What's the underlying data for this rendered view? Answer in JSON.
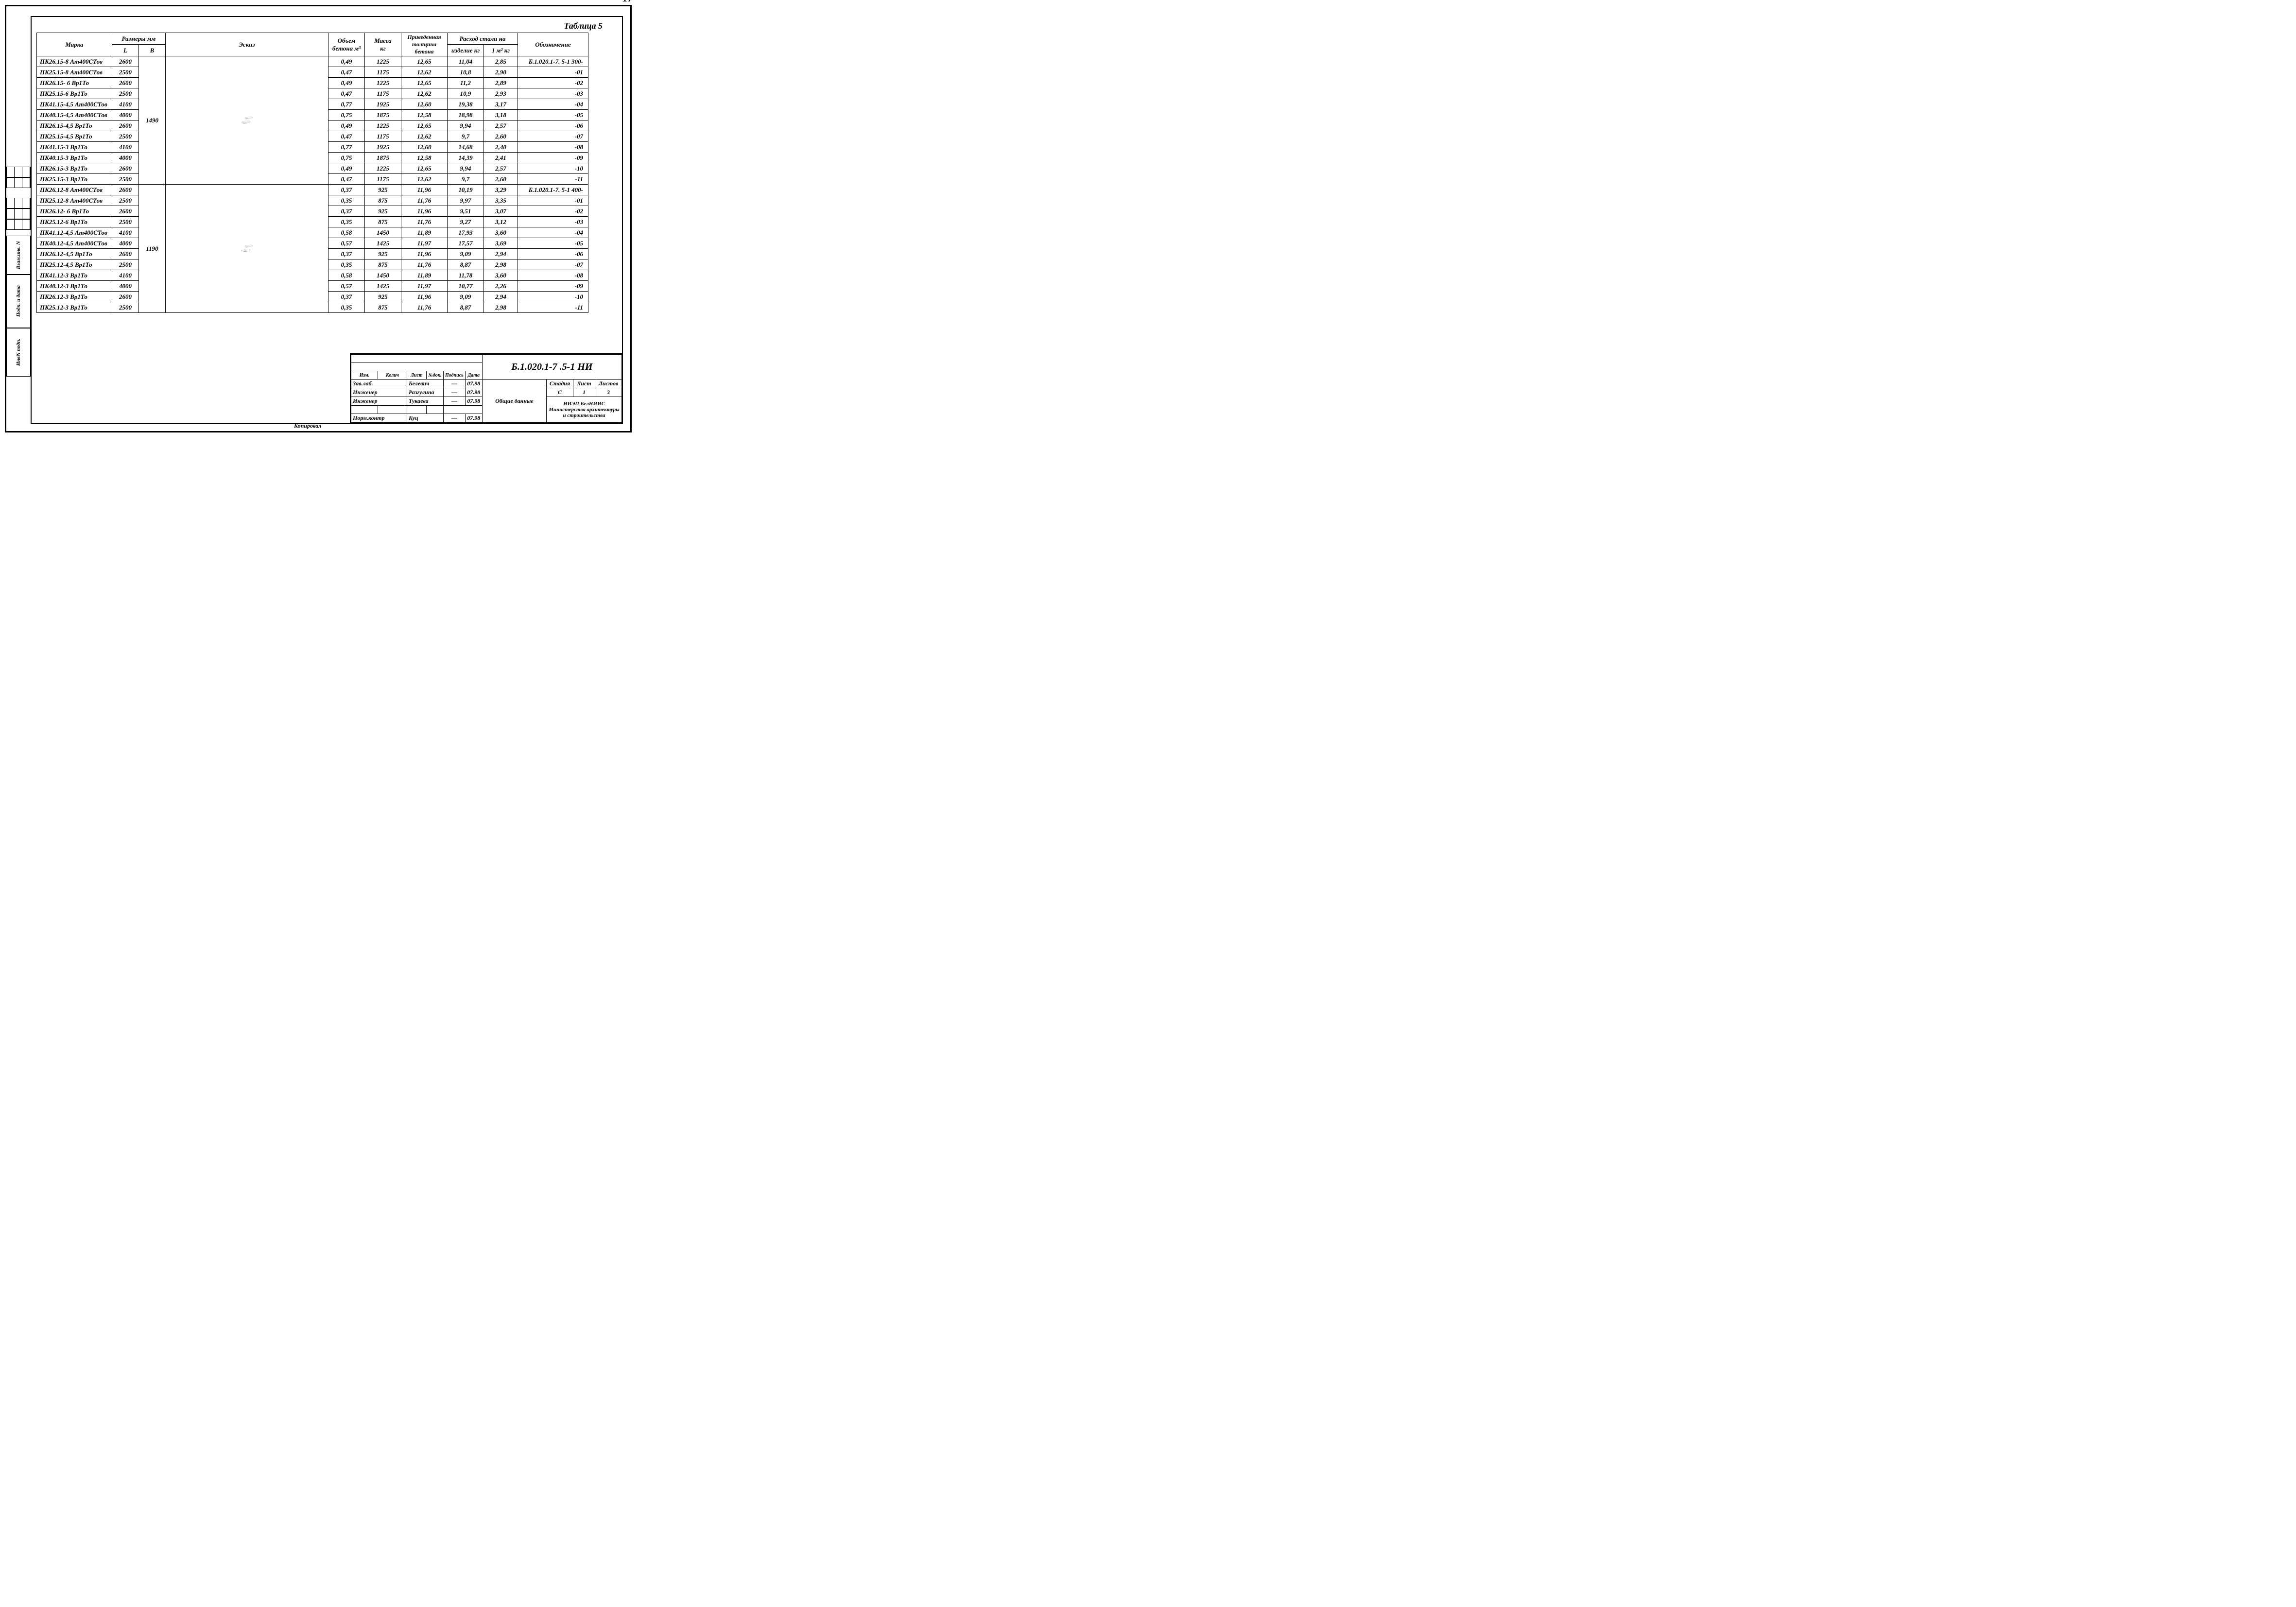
{
  "page_number": "17",
  "table_title": "Таблица 5",
  "columns": {
    "mark": "Марка",
    "dims_group": "Размеры   мм",
    "L": "L",
    "B": "B",
    "sketch": "Эскиз",
    "volume": "Объем\nбетона м³",
    "mass": "Масса\nкг",
    "thickness": "Приведенная\nтолщина бетона",
    "steel_group": "Расход стали на",
    "steel_item": "изделие кг",
    "steel_m2": "1 м² кг",
    "designation": "Обозначение"
  },
  "groups": [
    {
      "B": "1490",
      "sketch_height": "220",
      "sketch_width_label": "B",
      "rows": [
        {
          "mark": "ПК26.15-8 Ат400СТов",
          "L": "2600",
          "vol": "0,49",
          "mass": "1225",
          "th": "12,65",
          "s1": "11,04",
          "s2": "2,85",
          "des": "Б.1.020.1-7. 5-1 300-"
        },
        {
          "mark": "ПК25.15-8 Ат400СТов",
          "L": "2500",
          "vol": "0,47",
          "mass": "1175",
          "th": "12,62",
          "s1": "10,8",
          "s2": "2,90",
          "des": "-01"
        },
        {
          "mark": "ПК26.15- 6 Вр1То",
          "L": "2600",
          "vol": "0,49",
          "mass": "1225",
          "th": "12,65",
          "s1": "11,2",
          "s2": "2,89",
          "des": "-02"
        },
        {
          "mark": "ПК25.15-6 Вр1То",
          "L": "2500",
          "vol": "0,47",
          "mass": "1175",
          "th": "12,62",
          "s1": "10,9",
          "s2": "2,93",
          "des": "-03"
        },
        {
          "mark": "ПК41.15-4,5 Ат400СТов",
          "L": "4100",
          "vol": "0,77",
          "mass": "1925",
          "th": "12,60",
          "s1": "19,38",
          "s2": "3,17",
          "des": "-04"
        },
        {
          "mark": "ПК40.15-4,5 Ат400СТов",
          "L": "4000",
          "vol": "0,75",
          "mass": "1875",
          "th": "12,58",
          "s1": "18,98",
          "s2": "3,18",
          "des": "-05"
        },
        {
          "mark": "ПК26.15-4,5 Вр1То",
          "L": "2600",
          "vol": "0,49",
          "mass": "1225",
          "th": "12,65",
          "s1": "9,94",
          "s2": "2,57",
          "des": "-06"
        },
        {
          "mark": "ПК25.15-4,5 Вр1То",
          "L": "2500",
          "vol": "0,47",
          "mass": "1175",
          "th": "12,62",
          "s1": "9,7",
          "s2": "2,60",
          "des": "-07"
        },
        {
          "mark": "ПК41.15-3 Вр1То",
          "L": "4100",
          "vol": "0,77",
          "mass": "1925",
          "th": "12,60",
          "s1": "14,68",
          "s2": "2,40",
          "des": "-08"
        },
        {
          "mark": "ПК40.15-3 Вр1То",
          "L": "4000",
          "vol": "0,75",
          "mass": "1875",
          "th": "12,58",
          "s1": "14,39",
          "s2": "2,41",
          "des": "-09"
        },
        {
          "mark": "ПК26.15-3 Вр1То",
          "L": "2600",
          "vol": "0,49",
          "mass": "1225",
          "th": "12,65",
          "s1": "9,94",
          "s2": "2,57",
          "des": "-10"
        },
        {
          "mark": "ПК25.15-3 Вр1То",
          "L": "2500",
          "vol": "0,47",
          "mass": "1175",
          "th": "12,62",
          "s1": "9,7",
          "s2": "2,60",
          "des": "-11"
        }
      ]
    },
    {
      "B": "1190",
      "sketch_height": "220",
      "sketch_width_label": "B",
      "rows": [
        {
          "mark": "ПК26.12-8 Ат400СТов",
          "L": "2600",
          "vol": "0,37",
          "mass": "925",
          "th": "11,96",
          "s1": "10,19",
          "s2": "3,29",
          "des": "Б.1.020.1-7. 5-1 400-"
        },
        {
          "mark": "ПК25.12-8 Ат400СТов",
          "L": "2500",
          "vol": "0,35",
          "mass": "875",
          "th": "11,76",
          "s1": "9,97",
          "s2": "3,35",
          "des": "-01"
        },
        {
          "mark": "ПК26.12- 6 Вр1То",
          "L": "2600",
          "vol": "0,37",
          "mass": "925",
          "th": "11,96",
          "s1": "9,51",
          "s2": "3,07",
          "des": "-02"
        },
        {
          "mark": "ПК25.12-6 Вр1То",
          "L": "2500",
          "vol": "0,35",
          "mass": "875",
          "th": "11,76",
          "s1": "9,27",
          "s2": "3,12",
          "des": "-03"
        },
        {
          "mark": "ПК41.12-4,5 Ат400СТов",
          "L": "4100",
          "vol": "0,58",
          "mass": "1450",
          "th": "11,89",
          "s1": "17,93",
          "s2": "3,60",
          "des": "-04"
        },
        {
          "mark": "ПК40.12-4,5 Ат400СТов",
          "L": "4000",
          "vol": "0,57",
          "mass": "1425",
          "th": "11,97",
          "s1": "17,57",
          "s2": "3,69",
          "des": "-05"
        },
        {
          "mark": "ПК26.12-4,5 Вр1То",
          "L": "2600",
          "vol": "0,37",
          "mass": "925",
          "th": "11,96",
          "s1": "9,09",
          "s2": "2,94",
          "des": "-06"
        },
        {
          "mark": "ПК25.12-4,5 Вр1То",
          "L": "2500",
          "vol": "0,35",
          "mass": "875",
          "th": "11,76",
          "s1": "8,87",
          "s2": "2,98",
          "des": "-07"
        },
        {
          "mark": "ПК41.12-3 Вр1То",
          "L": "4100",
          "vol": "0,58",
          "mass": "1450",
          "th": "11,89",
          "s1": "11,78",
          "s2": "3,60",
          "des": "-08"
        },
        {
          "mark": "ПК40.12-3 Вр1То",
          "L": "4000",
          "vol": "0,57",
          "mass": "1425",
          "th": "11,97",
          "s1": "10,77",
          "s2": "2,26",
          "des": "-09"
        },
        {
          "mark": "ПК26.12-3 Вр1То",
          "L": "2600",
          "vol": "0,37",
          "mass": "925",
          "th": "11,96",
          "s1": "9,09",
          "s2": "2,94",
          "des": "-10"
        },
        {
          "mark": "ПК25.12-3 Вр1То",
          "L": "2500",
          "vol": "0,35",
          "mass": "875",
          "th": "11,76",
          "s1": "8,87",
          "s2": "2,98",
          "des": "-11"
        }
      ]
    }
  ],
  "side_labels": {
    "inv_podp": "ИнвN подп.",
    "podp_data": "Подп. и дата",
    "vzam": "Взам.инв. N"
  },
  "title_block": {
    "doc_code": "Б.1.020.1-7 .5-1    НИ",
    "rev_header": [
      "Изм.",
      "Колич",
      "Лист",
      "№док.",
      "Подпись",
      "Дата"
    ],
    "roles": [
      {
        "role": "Зав.лаб.",
        "name": "Белевич",
        "sign": "—",
        "date": "07.98"
      },
      {
        "role": "Инженер",
        "name": "Разгулина",
        "sign": "—",
        "date": "07.98"
      },
      {
        "role": "Инженер",
        "name": "Тукаева",
        "sign": "—",
        "date": "07.98"
      },
      {
        "role": "Норм.контр",
        "name": "Куц",
        "sign": "—",
        "date": "07.98"
      }
    ],
    "subject": "Общие данные",
    "stage_h": "Стадия",
    "sheet_h": "Лист",
    "sheets_h": "Листов",
    "stage": "С",
    "sheet": "1",
    "sheets": "3",
    "org1": "НИЭП БелНИИС",
    "org2": "Министерства архитектуры",
    "org3": "и строительства"
  },
  "footer_note": "Копировал",
  "colors": {
    "line": "#000",
    "bg": "#fff"
  }
}
